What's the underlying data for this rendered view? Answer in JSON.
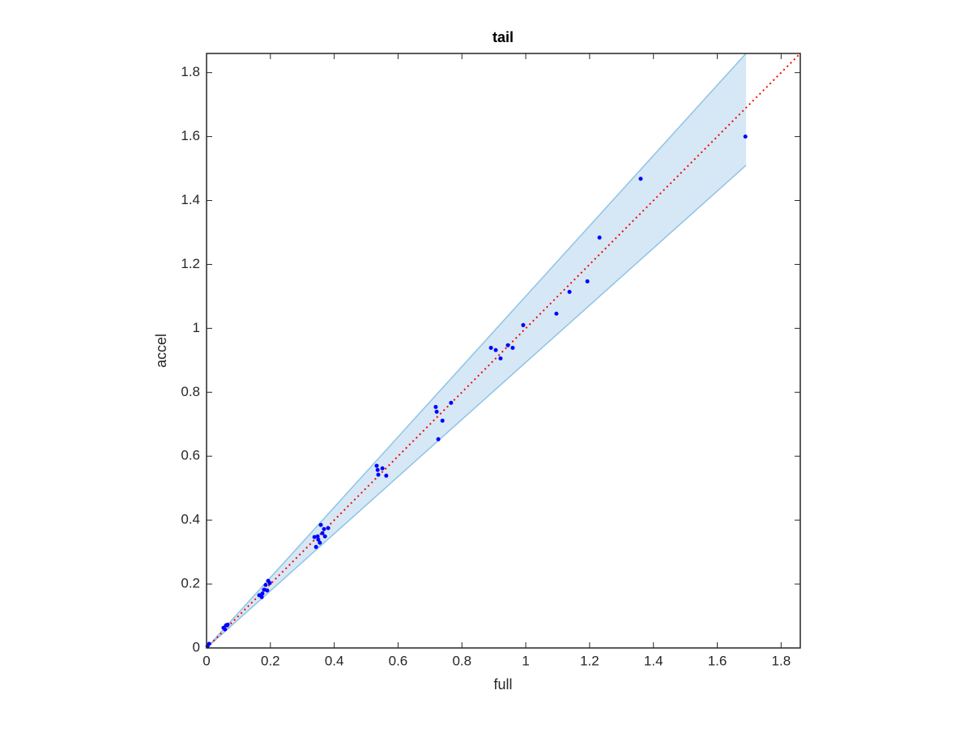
{
  "chart_data": {
    "type": "scatter",
    "title": "tail",
    "xlabel": "full",
    "ylabel": "accel",
    "xlim": [
      0,
      1.86
    ],
    "ylim": [
      0,
      1.86
    ],
    "xticks": [
      0,
      0.2,
      0.4,
      0.6,
      0.8,
      1,
      1.2,
      1.4,
      1.6,
      1.8
    ],
    "yticks": [
      0,
      0.2,
      0.4,
      0.6,
      0.8,
      1,
      1.2,
      1.4,
      1.6,
      1.8
    ],
    "band": {
      "color": "#8fc3e4",
      "fill": "#d6e8f5",
      "x": [
        0,
        1.69
      ],
      "upper": [
        0,
        1.86
      ],
      "lower": [
        0,
        1.51
      ]
    },
    "reference_line": {
      "color": "#ff0000",
      "x": [
        0,
        1.86
      ],
      "y": [
        0,
        1.86
      ]
    },
    "series": [
      {
        "color": "#0000ff",
        "x": [
          1.688,
          1.36,
          1.231,
          1.193,
          1.137,
          1.096,
          0.992,
          0.959,
          0.944,
          0.921,
          0.906,
          0.891,
          0.766,
          0.739,
          0.726,
          0.721,
          0.718,
          0.563,
          0.551,
          0.536,
          0.538,
          0.533,
          0.338,
          0.348,
          0.355,
          0.343,
          0.363,
          0.368,
          0.358,
          0.381,
          0.35,
          0.371,
          0.165,
          0.173,
          0.18,
          0.185,
          0.193,
          0.19,
          0.175,
          0.198,
          0.053,
          0.061,
          0.066,
          0.058,
          0.003,
          0.008
        ],
        "y": [
          1.6,
          1.468,
          1.284,
          1.147,
          1.114,
          1.046,
          1.01,
          0.939,
          0.947,
          0.906,
          0.932,
          0.939,
          0.767,
          0.711,
          0.653,
          0.739,
          0.754,
          0.539,
          0.562,
          0.557,
          0.542,
          0.57,
          0.347,
          0.349,
          0.329,
          0.316,
          0.359,
          0.372,
          0.385,
          0.375,
          0.339,
          0.349,
          0.165,
          0.159,
          0.182,
          0.197,
          0.21,
          0.18,
          0.17,
          0.203,
          0.063,
          0.071,
          0.073,
          0.058,
          0.005,
          0.013
        ]
      }
    ]
  }
}
